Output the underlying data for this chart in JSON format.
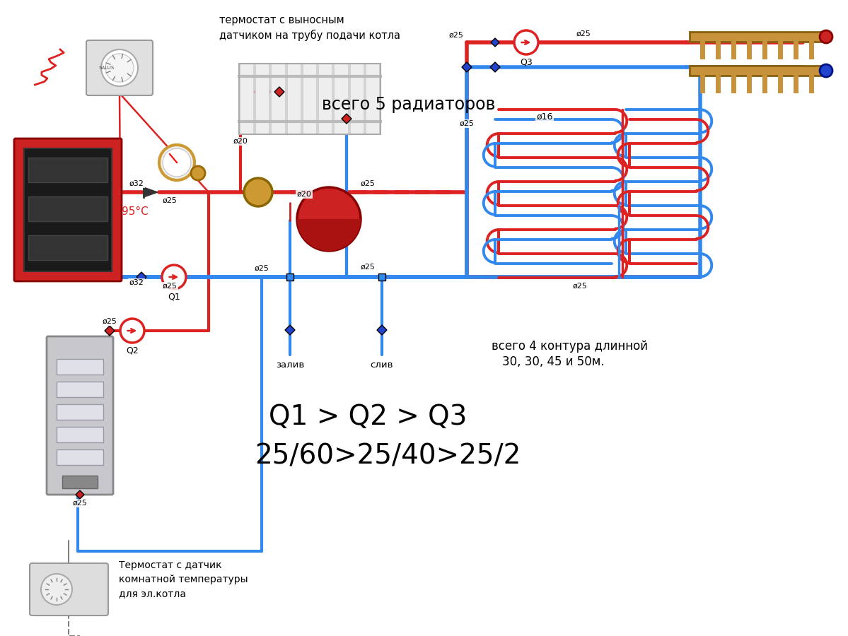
{
  "bg_color": "#ffffff",
  "red": "#dd2222",
  "blue": "#3388ee",
  "pipe_lw": 4,
  "pipe_lw2": 3,
  "label_text1": "термостат с выносным",
  "label_text2": "датчиком на трубу подачи котла",
  "label_text3": "всего 5 радиаторов",
  "label_text4": "всего 4 контура длинной",
  "label_text5": "30, 30, 45 и 50м.",
  "label_text6": "Q1 > Q2 > Q3",
  "label_text7": "25/60>25/40>25/2",
  "label_text8": "Термостат с датчик",
  "label_text9": "комнатной температуры",
  "label_text10": "для эл.котла",
  "label_95": "95°С",
  "label_d16": "ø16",
  "label_zaliv": "залив",
  "label_sliv": "слив"
}
